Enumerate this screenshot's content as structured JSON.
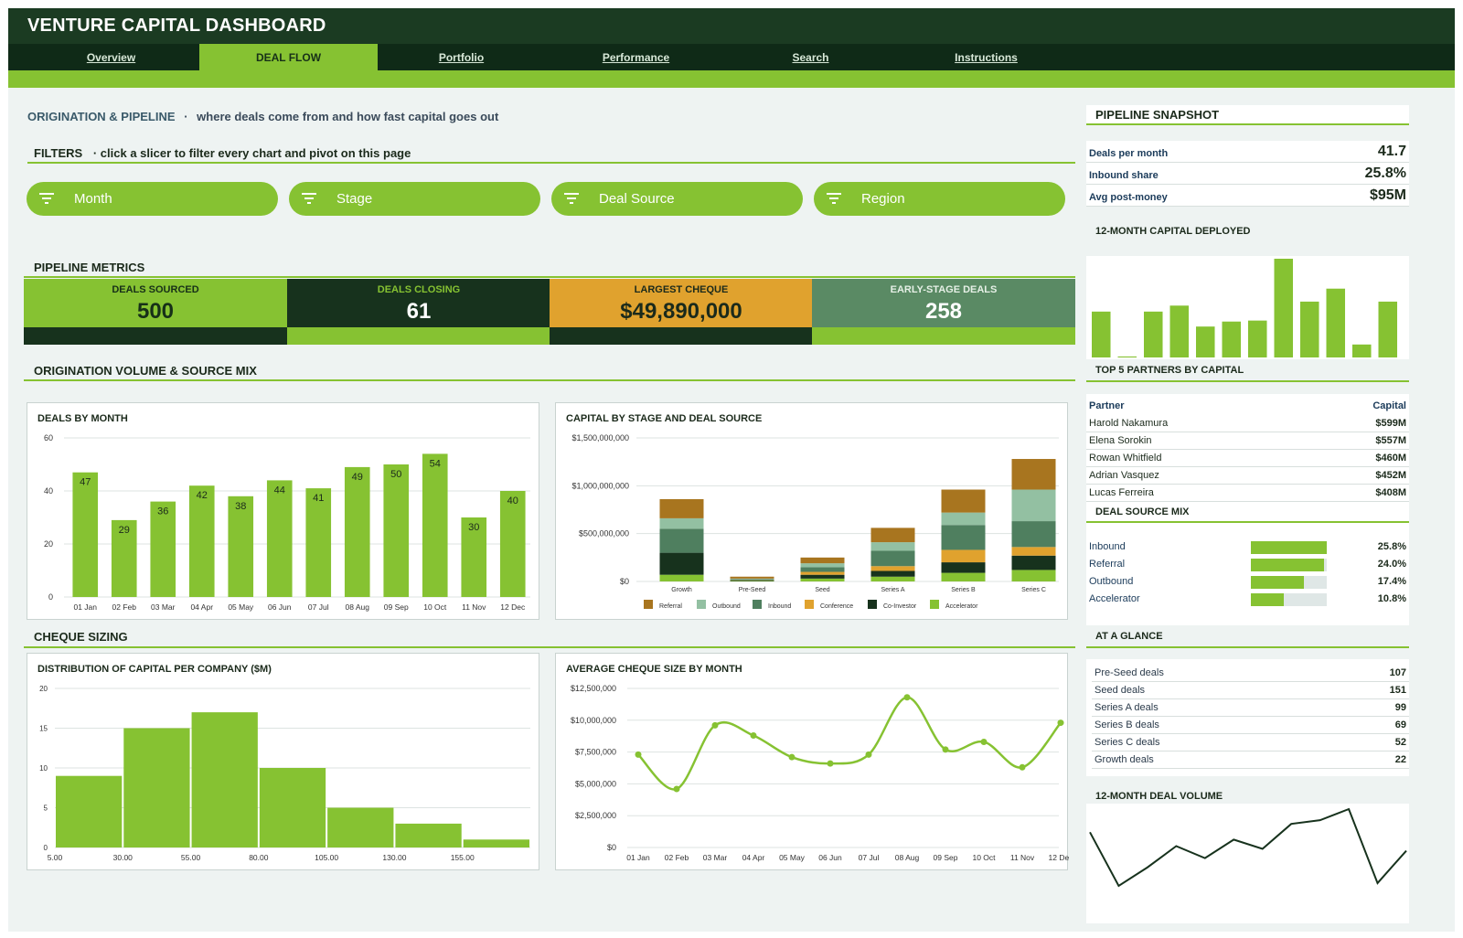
{
  "app": {
    "title": "VENTURE CAPITAL DASHBOARD"
  },
  "nav": {
    "tabs": [
      {
        "label": "Overview",
        "active": false
      },
      {
        "label": "DEAL FLOW",
        "active": true
      },
      {
        "label": "Portfolio",
        "active": false
      },
      {
        "label": "Performance",
        "active": false
      },
      {
        "label": "Search",
        "active": false
      },
      {
        "label": "Instructions",
        "active": false
      }
    ]
  },
  "header": {
    "section": "ORIGINATION & PIPELINE",
    "separator": "·",
    "subtitle": "where deals come from and how fast capital goes out"
  },
  "filters": {
    "title": "FILTERS",
    "separator": "·",
    "description": "click a slicer to filter every chart and pivot on this page",
    "slicers": [
      "Month",
      "Stage",
      "Deal Source",
      "Region"
    ],
    "icon": "filter-icon"
  },
  "pipeline_metrics": {
    "title": "PIPELINE METRICS",
    "kpis": [
      {
        "label": "DEALS SOURCED",
        "value": "500"
      },
      {
        "label": "DEALS CLOSING",
        "value": "61"
      },
      {
        "label": "LARGEST CHEQUE",
        "value": "$49,890,000"
      },
      {
        "label": "EARLY-STAGE DEALS",
        "value": "258"
      }
    ]
  },
  "sections": {
    "origination": "ORIGINATION VOLUME & SOURCE MIX",
    "cheque": "CHEQUE SIZING"
  },
  "colors": {
    "accent": "#86c232",
    "dark": "#1b3b22",
    "gold": "#e0a22e",
    "slate": "#5a8a64",
    "referral": "#a8751f",
    "outbound": "#93c0a2",
    "inbound": "#4f7f5f",
    "conference": "#e0a22e",
    "coinvestor": "#17321d",
    "accelerator": "#86c232"
  },
  "chart_data": [
    {
      "id": "deals_by_month",
      "type": "bar",
      "title": "DEALS BY MONTH",
      "categories": [
        "01 Jan",
        "02 Feb",
        "03 Mar",
        "04 Apr",
        "05 May",
        "06 Jun",
        "07 Jul",
        "08 Aug",
        "09 Sep",
        "10 Oct",
        "11 Nov",
        "12 Dec"
      ],
      "values": [
        47,
        29,
        36,
        42,
        38,
        44,
        41,
        49,
        50,
        54,
        30,
        40
      ],
      "ylim": [
        0,
        60
      ],
      "yticks": [
        "0",
        "20",
        "40",
        "60"
      ],
      "grid": true
    },
    {
      "id": "capital_by_stage",
      "type": "bar",
      "stacked": true,
      "title": "CAPITAL BY STAGE AND DEAL SOURCE",
      "categories": [
        "Growth",
        "Pre-Seed",
        "Seed",
        "Series A",
        "Series B",
        "Series C"
      ],
      "ylim": [
        0,
        1500000000
      ],
      "yticks": [
        "$0",
        "$500,000,000",
        "$1,000,000,000",
        "$1,500,000,000"
      ],
      "series": [
        {
          "name": "Accelerator",
          "values": [
            70000000,
            5000000,
            30000000,
            50000000,
            90000000,
            120000000
          ]
        },
        {
          "name": "Co-Investor",
          "values": [
            230000000,
            8000000,
            40000000,
            60000000,
            110000000,
            150000000
          ]
        },
        {
          "name": "Conference",
          "values": [
            0,
            2000000,
            30000000,
            50000000,
            130000000,
            90000000
          ]
        },
        {
          "name": "Inbound",
          "values": [
            250000000,
            8000000,
            50000000,
            160000000,
            260000000,
            270000000
          ]
        },
        {
          "name": "Outbound",
          "values": [
            110000000,
            7000000,
            40000000,
            90000000,
            130000000,
            330000000
          ]
        },
        {
          "name": "Referral",
          "values": [
            200000000,
            20000000,
            60000000,
            150000000,
            240000000,
            320000000
          ]
        }
      ],
      "legend": [
        "Referral",
        "Outbound",
        "Inbound",
        "Conference",
        "Co-Investor",
        "Accelerator"
      ],
      "grid": true
    },
    {
      "id": "capital_distribution",
      "type": "bar",
      "histogram": true,
      "title": "DISTRIBUTION OF CAPITAL PER COMPANY ($M)",
      "bin_edges": [
        "5.00",
        "30.00",
        "55.00",
        "80.00",
        "105.00",
        "130.00",
        "155.00"
      ],
      "values": [
        9,
        15,
        17,
        10,
        5,
        3,
        1
      ],
      "ylim": [
        0,
        20
      ],
      "yticks": [
        "0",
        "5",
        "10",
        "15",
        "20"
      ],
      "grid": true
    },
    {
      "id": "avg_cheque_by_month",
      "type": "line",
      "smooth": true,
      "title": "AVERAGE CHEQUE SIZE BY MONTH",
      "categories": [
        "01 Jan",
        "02 Feb",
        "03 Mar",
        "04 Apr",
        "05 May",
        "06 Jun",
        "07 Jul",
        "08 Aug",
        "09 Sep",
        "10 Oct",
        "11 Nov",
        "12 Dec"
      ],
      "values": [
        7300000,
        4600000,
        9600000,
        8800000,
        7100000,
        6600000,
        7300000,
        11800000,
        7700000,
        8300000,
        6300000,
        9800000
      ],
      "ylim": [
        0,
        12500000
      ],
      "yticks": [
        "$0",
        "$2,500,000",
        "$5,000,000",
        "$7,500,000",
        "$10,000,000",
        "$12,500,000"
      ],
      "grid": true
    },
    {
      "id": "capital_deployed_12m",
      "type": "bar",
      "title": "12-MONTH CAPITAL DEPLOYED",
      "values": [
        46,
        1,
        46,
        52,
        31,
        36,
        37,
        99,
        56,
        69,
        13,
        56
      ]
    },
    {
      "id": "deal_volume_12m",
      "type": "line",
      "title": "12-MONTH DEAL VOLUME",
      "values": [
        60,
        2,
        22,
        45,
        32,
        52,
        42,
        69,
        73,
        85,
        5,
        40
      ]
    }
  ],
  "snapshot": {
    "title": "PIPELINE SNAPSHOT",
    "rows": [
      {
        "label": "Deals per month",
        "value": "41.7"
      },
      {
        "label": "Inbound share",
        "value": "25.8%"
      },
      {
        "label": "Avg post-money",
        "value": "$95M"
      }
    ]
  },
  "partners": {
    "title": "TOP 5 PARTNERS BY CAPITAL",
    "col_partner": "Partner",
    "col_capital": "Capital",
    "rows": [
      {
        "name": "Harold Nakamura",
        "capital": "$599M"
      },
      {
        "name": "Elena Sorokin",
        "capital": "$557M"
      },
      {
        "name": "Rowan Whitfield",
        "capital": "$460M"
      },
      {
        "name": "Adrian Vasquez",
        "capital": "$452M"
      },
      {
        "name": "Lucas Ferreira",
        "capital": "$408M"
      }
    ]
  },
  "source_mix": {
    "title": "DEAL SOURCE MIX",
    "rows": [
      {
        "name": "Inbound",
        "pct": "25.8%",
        "share": 0.258
      },
      {
        "name": "Referral",
        "pct": "24.0%",
        "share": 0.24
      },
      {
        "name": "Outbound",
        "pct": "17.4%",
        "share": 0.174
      },
      {
        "name": "Accelerator",
        "pct": "10.8%",
        "share": 0.108
      }
    ]
  },
  "glance": {
    "title": "AT A GLANCE",
    "rows": [
      {
        "label": "Pre-Seed deals",
        "value": "107"
      },
      {
        "label": "Seed deals",
        "value": "151"
      },
      {
        "label": "Series A deals",
        "value": "99"
      },
      {
        "label": "Series B deals",
        "value": "69"
      },
      {
        "label": "Series C deals",
        "value": "52"
      },
      {
        "label": "Growth deals",
        "value": "22"
      }
    ]
  }
}
